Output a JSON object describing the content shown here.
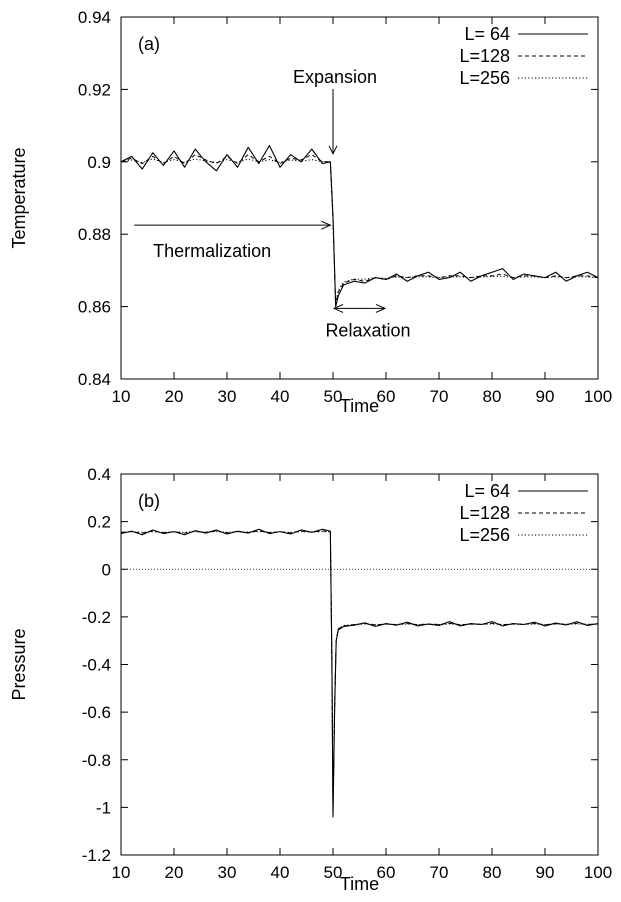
{
  "chart_data": [
    {
      "type": "line",
      "panel_label": "(a)",
      "xlabel": "Time",
      "ylabel": "Temperature",
      "xlim": [
        10,
        100
      ],
      "ylim": [
        0.84,
        0.94
      ],
      "xticks": [
        10,
        20,
        30,
        40,
        50,
        60,
        70,
        80,
        90,
        100
      ],
      "yticks": [
        0.84,
        0.86,
        0.88,
        0.9,
        0.92,
        0.94
      ],
      "ytick_labels": [
        "0.84",
        "0.86",
        "0.88",
        "0.9",
        "0.92",
        "0.94"
      ],
      "grid": false,
      "legend_position": "top-right",
      "series": [
        {
          "name": "L= 64",
          "style": "solid",
          "x": [
            10,
            12,
            14,
            16,
            18,
            20,
            22,
            24,
            26,
            28,
            30,
            32,
            34,
            36,
            38,
            40,
            42,
            44,
            46,
            48,
            49.5,
            50,
            50.5,
            51,
            52,
            54,
            56,
            58,
            60,
            62,
            64,
            66,
            68,
            70,
            72,
            74,
            76,
            78,
            80,
            82,
            84,
            86,
            88,
            90,
            92,
            94,
            96,
            98,
            100
          ],
          "y": [
            0.9,
            0.9015,
            0.898,
            0.9025,
            0.899,
            0.903,
            0.8985,
            0.9035,
            0.9,
            0.8975,
            0.902,
            0.8985,
            0.904,
            0.8995,
            0.9045,
            0.8985,
            0.902,
            0.9,
            0.9035,
            0.8995,
            0.9,
            0.885,
            0.86,
            0.863,
            0.866,
            0.867,
            0.8665,
            0.868,
            0.8675,
            0.869,
            0.867,
            0.8685,
            0.8695,
            0.8675,
            0.868,
            0.8695,
            0.867,
            0.8685,
            0.8695,
            0.8705,
            0.8675,
            0.869,
            0.8685,
            0.868,
            0.8695,
            0.867,
            0.8685,
            0.8695,
            0.868
          ]
        },
        {
          "name": "L=128",
          "style": "dashed",
          "x": [
            10,
            12,
            14,
            16,
            18,
            20,
            22,
            24,
            26,
            28,
            30,
            32,
            34,
            36,
            38,
            40,
            42,
            44,
            46,
            48,
            49.5,
            50,
            50.5,
            51,
            52,
            54,
            56,
            58,
            60,
            62,
            64,
            66,
            68,
            70,
            72,
            74,
            76,
            78,
            80,
            82,
            84,
            86,
            88,
            90,
            92,
            94,
            96,
            98,
            100
          ],
          "y": [
            0.9,
            0.901,
            0.8995,
            0.9015,
            0.8995,
            0.9015,
            0.8995,
            0.902,
            0.9005,
            0.8995,
            0.9015,
            0.8995,
            0.902,
            0.9,
            0.9015,
            0.8995,
            0.901,
            0.9005,
            0.902,
            0.9,
            0.9,
            0.884,
            0.8605,
            0.864,
            0.8665,
            0.8675,
            0.867,
            0.868,
            0.8675,
            0.8685,
            0.868,
            0.8685,
            0.8685,
            0.868,
            0.8685,
            0.8685,
            0.868,
            0.8685,
            0.8685,
            0.869,
            0.868,
            0.8685,
            0.8685,
            0.868,
            0.8685,
            0.868,
            0.8685,
            0.8685,
            0.868
          ]
        },
        {
          "name": "L=256",
          "style": "dotted",
          "x": [
            10,
            12,
            14,
            16,
            18,
            20,
            22,
            24,
            26,
            28,
            30,
            32,
            34,
            36,
            38,
            40,
            42,
            44,
            46,
            48,
            49.5,
            50,
            50.5,
            51,
            52,
            54,
            56,
            58,
            60,
            62,
            64,
            66,
            68,
            70,
            72,
            74,
            76,
            78,
            80,
            82,
            84,
            86,
            88,
            90,
            92,
            94,
            96,
            98,
            100
          ],
          "y": [
            0.9,
            0.9005,
            0.8998,
            0.9008,
            0.8998,
            0.9006,
            0.8998,
            0.9008,
            0.9002,
            0.8998,
            0.9006,
            0.8998,
            0.9008,
            0.9,
            0.9006,
            0.8998,
            0.9005,
            0.9002,
            0.9006,
            0.9,
            0.9,
            0.884,
            0.861,
            0.8645,
            0.8668,
            0.8676,
            0.8676,
            0.868,
            0.8678,
            0.8682,
            0.868,
            0.8682,
            0.8682,
            0.868,
            0.8682,
            0.8682,
            0.868,
            0.8682,
            0.8683,
            0.8684,
            0.868,
            0.8682,
            0.8682,
            0.868,
            0.8682,
            0.868,
            0.8682,
            0.8682,
            0.868
          ]
        }
      ],
      "annotations": [
        {
          "text": "Expansion"
        },
        {
          "text": "Thermalization"
        },
        {
          "text": "Relaxation"
        }
      ]
    },
    {
      "type": "line",
      "panel_label": "(b)",
      "xlabel": "Time",
      "ylabel": "Pressure",
      "xlim": [
        10,
        100
      ],
      "ylim": [
        -1.2,
        0.4
      ],
      "xticks": [
        10,
        20,
        30,
        40,
        50,
        60,
        70,
        80,
        90,
        100
      ],
      "yticks": [
        -1.2,
        -1,
        -0.8,
        -0.6,
        -0.4,
        -0.2,
        0,
        0.2,
        0.4
      ],
      "ytick_labels": [
        "-1.2",
        "-1",
        "-0.8",
        "-0.6",
        "-0.4",
        "-0.2",
        "0",
        "0.2",
        "0.4"
      ],
      "grid": false,
      "legend_position": "top-right",
      "reference_line_y": 0,
      "series": [
        {
          "name": "L= 64",
          "style": "solid",
          "x": [
            10,
            12,
            14,
            16,
            18,
            20,
            22,
            24,
            26,
            28,
            30,
            32,
            34,
            36,
            38,
            40,
            42,
            44,
            46,
            48,
            49.5,
            49.8,
            50,
            50.3,
            50.6,
            51,
            52,
            54,
            56,
            58,
            60,
            62,
            64,
            66,
            68,
            70,
            72,
            74,
            76,
            78,
            80,
            82,
            84,
            86,
            88,
            90,
            92,
            94,
            96,
            98,
            100
          ],
          "y": [
            0.15,
            0.16,
            0.145,
            0.165,
            0.15,
            0.158,
            0.145,
            0.162,
            0.152,
            0.165,
            0.148,
            0.16,
            0.152,
            0.168,
            0.15,
            0.158,
            0.148,
            0.165,
            0.155,
            0.168,
            0.16,
            -0.4,
            -1.04,
            -0.6,
            -0.3,
            -0.255,
            -0.24,
            -0.235,
            -0.225,
            -0.24,
            -0.228,
            -0.235,
            -0.222,
            -0.238,
            -0.23,
            -0.236,
            -0.22,
            -0.238,
            -0.228,
            -0.232,
            -0.22,
            -0.238,
            -0.228,
            -0.232,
            -0.222,
            -0.238,
            -0.226,
            -0.234,
            -0.22,
            -0.236,
            -0.228
          ]
        },
        {
          "name": "L=128",
          "style": "dashed",
          "x": [
            10,
            12,
            14,
            16,
            18,
            20,
            22,
            24,
            26,
            28,
            30,
            32,
            34,
            36,
            38,
            40,
            42,
            44,
            46,
            48,
            49.5,
            49.8,
            50,
            50.3,
            50.6,
            51,
            52,
            54,
            56,
            58,
            60,
            62,
            64,
            66,
            68,
            70,
            72,
            74,
            76,
            78,
            80,
            82,
            84,
            86,
            88,
            90,
            92,
            94,
            96,
            98,
            100
          ],
          "y": [
            0.155,
            0.158,
            0.152,
            0.16,
            0.154,
            0.157,
            0.152,
            0.159,
            0.155,
            0.16,
            0.153,
            0.158,
            0.155,
            0.161,
            0.154,
            0.157,
            0.153,
            0.16,
            0.156,
            0.161,
            0.158,
            -0.42,
            -1.03,
            -0.58,
            -0.3,
            -0.25,
            -0.238,
            -0.232,
            -0.228,
            -0.234,
            -0.23,
            -0.232,
            -0.228,
            -0.233,
            -0.23,
            -0.232,
            -0.227,
            -0.233,
            -0.23,
            -0.231,
            -0.227,
            -0.233,
            -0.23,
            -0.231,
            -0.228,
            -0.233,
            -0.229,
            -0.231,
            -0.227,
            -0.232,
            -0.23
          ]
        },
        {
          "name": "L=256",
          "style": "dotted",
          "x": [
            10,
            12,
            14,
            16,
            18,
            20,
            22,
            24,
            26,
            28,
            30,
            32,
            34,
            36,
            38,
            40,
            42,
            44,
            46,
            48,
            49.5,
            49.8,
            50,
            50.3,
            50.6,
            51,
            52,
            54,
            56,
            58,
            60,
            62,
            64,
            66,
            68,
            70,
            72,
            74,
            76,
            78,
            80,
            82,
            84,
            86,
            88,
            90,
            92,
            94,
            96,
            98,
            100
          ],
          "y": [
            0.156,
            0.157,
            0.155,
            0.158,
            0.155,
            0.157,
            0.155,
            0.158,
            0.156,
            0.158,
            0.155,
            0.157,
            0.156,
            0.158,
            0.155,
            0.157,
            0.155,
            0.158,
            0.156,
            0.158,
            0.157,
            -0.42,
            -1.02,
            -0.57,
            -0.3,
            -0.25,
            -0.236,
            -0.232,
            -0.23,
            -0.232,
            -0.231,
            -0.232,
            -0.23,
            -0.232,
            -0.231,
            -0.232,
            -0.23,
            -0.232,
            -0.231,
            -0.231,
            -0.23,
            -0.232,
            -0.231,
            -0.231,
            -0.23,
            -0.232,
            -0.23,
            -0.231,
            -0.23,
            -0.231,
            -0.23
          ]
        }
      ]
    }
  ]
}
